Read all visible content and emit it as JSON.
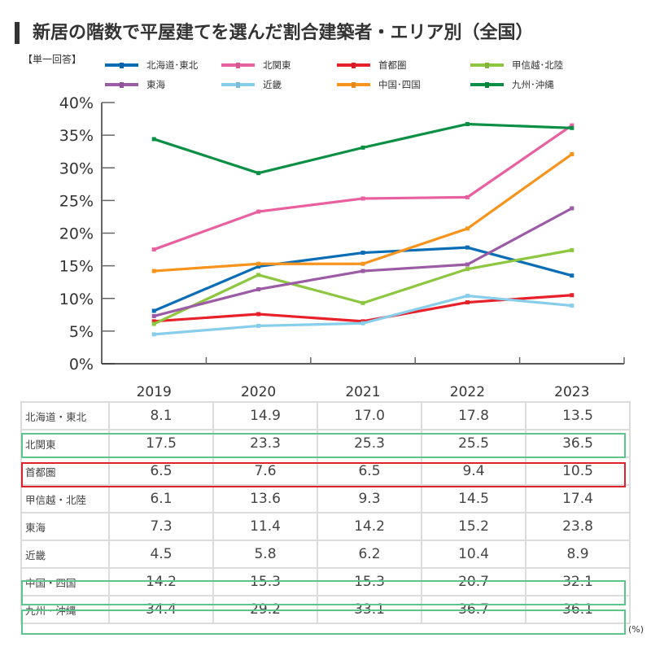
{
  "title": "新居の階数で平屋建てを選んだ割合建築者・エリア別（全国）",
  "subtitle": "【単一回答】",
  "unit_label": "(%)",
  "highlights": {
    "green": "#5cc48c",
    "red": "#e0202a"
  },
  "chart_data": {
    "type": "line",
    "title": "新居の階数で平屋建てを選んだ割合建築者・エリア別（全国）",
    "xlabel": "",
    "ylabel": "",
    "categories": [
      "2019",
      "2020",
      "2021",
      "2022",
      "2023"
    ],
    "ylim": [
      0,
      40
    ],
    "yticks": [
      0,
      5,
      10,
      15,
      20,
      25,
      30,
      35,
      40
    ],
    "ytick_labels": [
      "0%",
      "5%",
      "10%",
      "15%",
      "20%",
      "25%",
      "30%",
      "35%",
      "40%"
    ],
    "grid": false,
    "legend_position": "top",
    "series": [
      {
        "name": "北海道・東北",
        "legend_label": "北海道･東北",
        "color": "#0a6db6",
        "values": [
          8.1,
          14.9,
          17.0,
          17.8,
          13.5
        ]
      },
      {
        "name": "北関東",
        "legend_label": "北関東",
        "color": "#e8609f",
        "values": [
          17.5,
          23.3,
          25.3,
          25.5,
          36.5
        ]
      },
      {
        "name": "首都圏",
        "legend_label": "首都圏",
        "color": "#e8202a",
        "values": [
          6.5,
          7.6,
          6.5,
          9.4,
          10.5
        ]
      },
      {
        "name": "甲信越・北陸",
        "legend_label": "甲信越･北陸",
        "color": "#8dc63f",
        "values": [
          6.1,
          13.6,
          9.3,
          14.5,
          17.4
        ]
      },
      {
        "name": "東海",
        "legend_label": "東海",
        "color": "#9b5ba5",
        "values": [
          7.3,
          11.4,
          14.2,
          15.2,
          23.8
        ]
      },
      {
        "name": "近畿",
        "legend_label": "近畿",
        "color": "#87ceeb",
        "values": [
          4.5,
          5.8,
          6.2,
          10.4,
          8.9
        ]
      },
      {
        "name": "中国・四国",
        "legend_label": "中国･四国",
        "color": "#f7941d",
        "values": [
          14.2,
          15.3,
          15.3,
          20.7,
          32.1
        ]
      },
      {
        "name": "九州・沖縄",
        "legend_label": "九州･沖縄",
        "color": "#0a8f45",
        "values": [
          34.4,
          29.2,
          33.1,
          36.7,
          36.1
        ]
      }
    ]
  },
  "table": {
    "rows": [
      {
        "region": "北海道・東北",
        "values": [
          "8.1",
          "14.9",
          "17.0",
          "17.8",
          "13.5"
        ],
        "highlight": null
      },
      {
        "region": "北関東",
        "values": [
          "17.5",
          "23.3",
          "25.3",
          "25.5",
          "36.5"
        ],
        "highlight": "green"
      },
      {
        "region": "首都圏",
        "values": [
          "6.5",
          "7.6",
          "6.5",
          "9.4",
          "10.5"
        ],
        "highlight": "red"
      },
      {
        "region": "甲信越・北陸",
        "values": [
          "6.1",
          "13.6",
          "9.3",
          "14.5",
          "17.4"
        ],
        "highlight": null
      },
      {
        "region": "東海",
        "values": [
          "7.3",
          "11.4",
          "14.2",
          "15.2",
          "23.8"
        ],
        "highlight": null
      },
      {
        "region": "近畿",
        "values": [
          "4.5",
          "5.8",
          "6.2",
          "10.4",
          "8.9"
        ],
        "highlight": null
      },
      {
        "region": "中国・四国",
        "values": [
          "14.2",
          "15.3",
          "15.3",
          "20.7",
          "32.1"
        ],
        "highlight": "green"
      },
      {
        "region": "九州・沖縄",
        "values": [
          "34.4",
          "29.2",
          "33.1",
          "36.7",
          "36.1"
        ],
        "highlight": "green"
      }
    ]
  }
}
